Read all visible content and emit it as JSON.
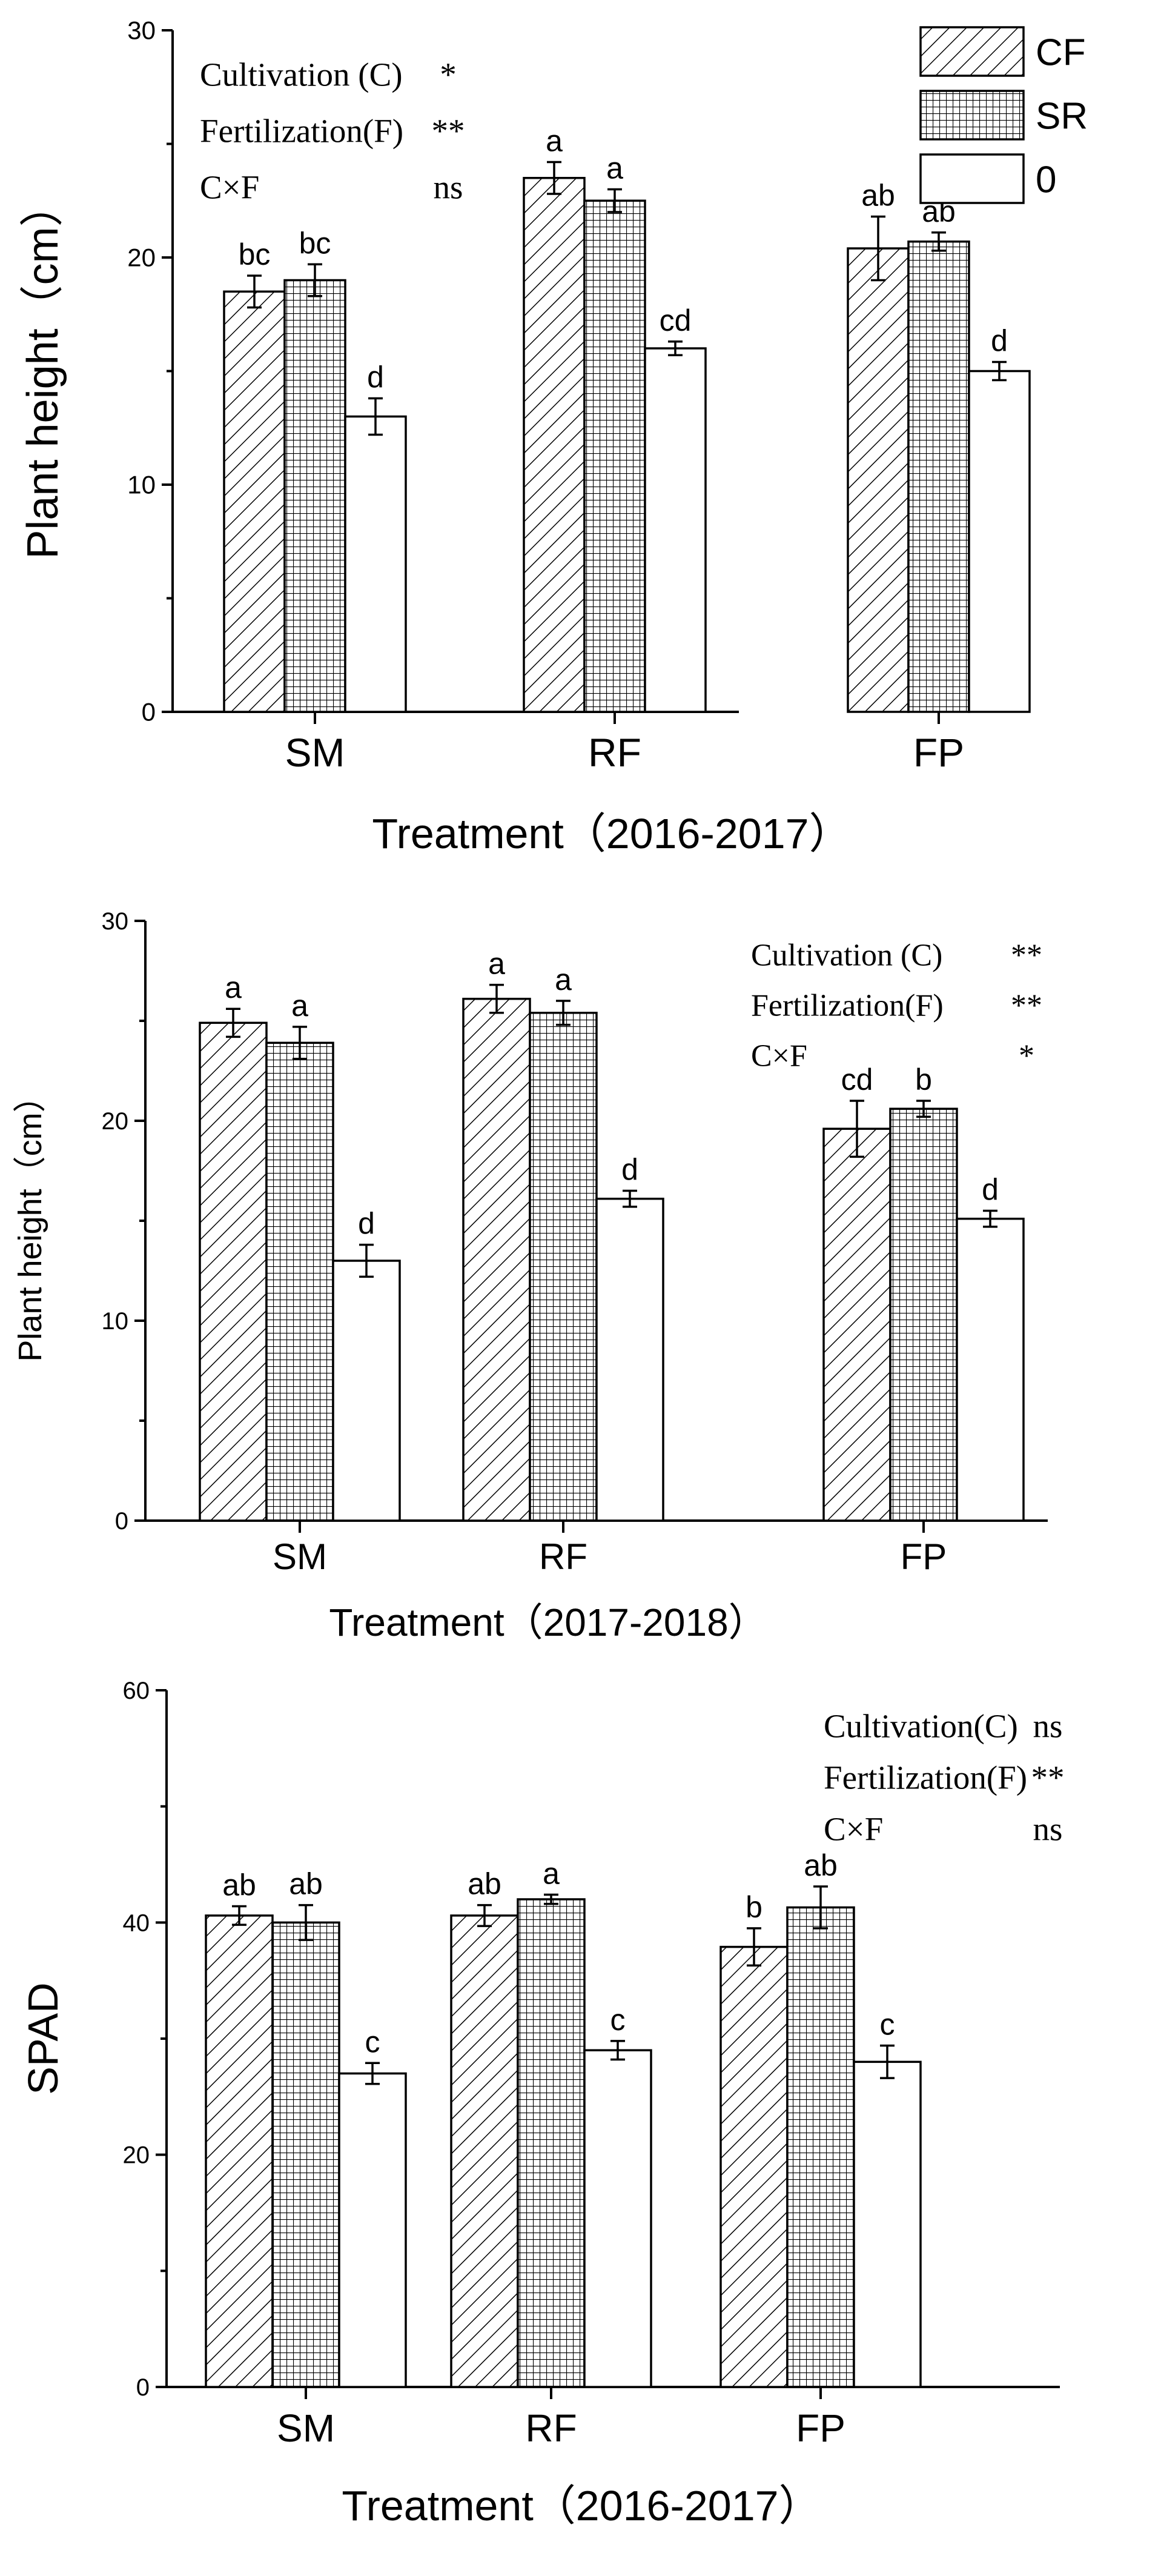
{
  "chart_data": [
    {
      "type": "bar",
      "title": "",
      "xlabel": "Treatment（2016-2017）",
      "ylabel": "Plant height（cm）",
      "ylim": [
        0,
        30
      ],
      "yticks": [
        0,
        10,
        20,
        30
      ],
      "categories": [
        "SM",
        "RF",
        "FP"
      ],
      "series": [
        {
          "name": "CF",
          "pattern": "diagonal",
          "values": [
            18.5,
            23.5,
            20.4
          ],
          "errors": [
            0.7,
            0.7,
            1.4
          ],
          "labels": [
            "bc",
            "a",
            "ab"
          ]
        },
        {
          "name": "SR",
          "pattern": "grid",
          "values": [
            19.0,
            22.5,
            20.7
          ],
          "errors": [
            0.7,
            0.5,
            0.4
          ],
          "labels": [
            "bc",
            "a",
            "ab"
          ]
        },
        {
          "name": "0",
          "pattern": "none",
          "values": [
            13.0,
            16.0,
            15.0
          ],
          "errors": [
            0.8,
            0.3,
            0.4
          ],
          "labels": [
            "d",
            "cd",
            "d"
          ]
        }
      ],
      "legend": {
        "position": "top-right",
        "entries": [
          "CF",
          "SR",
          "0"
        ]
      },
      "annotations": [
        {
          "label": "Cultivation (C)",
          "sig": "*"
        },
        {
          "label": "Fertilization(F)",
          "sig": "**"
        },
        {
          "label": "C×F",
          "sig": "ns"
        }
      ]
    },
    {
      "type": "bar",
      "title": "",
      "xlabel": "Treatment（2017-2018）",
      "ylabel": "Plant height（cm）",
      "ylim": [
        0,
        30
      ],
      "yticks": [
        0,
        10,
        20,
        30
      ],
      "categories": [
        "SM",
        "RF",
        "FP"
      ],
      "series": [
        {
          "name": "CF",
          "pattern": "diagonal",
          "values": [
            24.9,
            26.1,
            19.6
          ],
          "errors": [
            0.7,
            0.7,
            1.4
          ],
          "labels": [
            "a",
            "a",
            "cd"
          ]
        },
        {
          "name": "SR",
          "pattern": "grid",
          "values": [
            23.9,
            25.4,
            20.6
          ],
          "errors": [
            0.8,
            0.6,
            0.4
          ],
          "labels": [
            "a",
            "a",
            "b"
          ]
        },
        {
          "name": "0",
          "pattern": "none",
          "values": [
            13.0,
            16.1,
            15.1
          ],
          "errors": [
            0.8,
            0.4,
            0.4
          ],
          "labels": [
            "d",
            "d",
            "d"
          ]
        }
      ],
      "legend": null,
      "annotations": [
        {
          "label": "Cultivation (C)",
          "sig": "**"
        },
        {
          "label": "Fertilization(F)",
          "sig": "**"
        },
        {
          "label": "C×F",
          "sig": "*"
        }
      ]
    },
    {
      "type": "bar",
      "title": "",
      "xlabel": "Treatment（2016-2017）",
      "ylabel": "SPAD",
      "ylim": [
        0,
        60
      ],
      "yticks": [
        0,
        20,
        40,
        60
      ],
      "categories": [
        "SM",
        "RF",
        "FP"
      ],
      "series": [
        {
          "name": "CF",
          "pattern": "diagonal",
          "values": [
            40.6,
            40.6,
            37.9
          ],
          "errors": [
            0.8,
            0.9,
            1.6
          ],
          "labels": [
            "ab",
            "ab",
            "b"
          ]
        },
        {
          "name": "SR",
          "pattern": "grid",
          "values": [
            40.0,
            42.0,
            41.3
          ],
          "errors": [
            1.5,
            0.4,
            1.8
          ],
          "labels": [
            "ab",
            "a",
            "ab"
          ]
        },
        {
          "name": "0",
          "pattern": "none",
          "values": [
            27.0,
            29.0,
            28.0
          ],
          "errors": [
            0.9,
            0.8,
            1.4
          ],
          "labels": [
            "c",
            "c",
            "c"
          ]
        }
      ],
      "legend": null,
      "annotations": [
        {
          "label": "Cultivation(C)",
          "sig": "ns"
        },
        {
          "label": "Fertilization(F)",
          "sig": "**"
        },
        {
          "label": "C×F",
          "sig": "ns"
        }
      ]
    }
  ]
}
